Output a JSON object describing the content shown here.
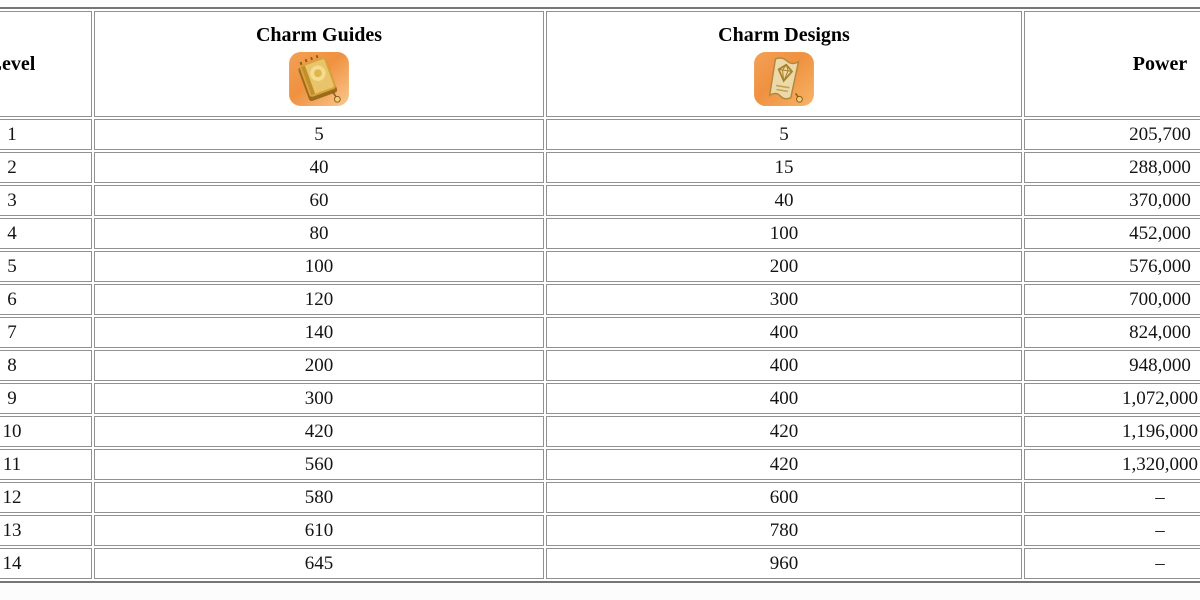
{
  "chart_data": {
    "type": "table",
    "columns": [
      "Level",
      "Charm Guides",
      "Charm Designs",
      "Power"
    ],
    "rows": [
      [
        1,
        5,
        5,
        "205,700"
      ],
      [
        2,
        40,
        15,
        "288,000"
      ],
      [
        3,
        60,
        40,
        "370,000"
      ],
      [
        4,
        80,
        100,
        "452,000"
      ],
      [
        5,
        100,
        200,
        "576,000"
      ],
      [
        6,
        120,
        300,
        "700,000"
      ],
      [
        7,
        140,
        400,
        "824,000"
      ],
      [
        8,
        200,
        400,
        "948,000"
      ],
      [
        9,
        300,
        400,
        "1,072,000"
      ],
      [
        10,
        420,
        420,
        "1,196,000"
      ],
      [
        11,
        560,
        420,
        "1,320,000"
      ],
      [
        12,
        580,
        600,
        "–"
      ],
      [
        13,
        610,
        780,
        "–"
      ],
      [
        14,
        645,
        960,
        "–"
      ]
    ],
    "layout_hints": {
      "grid": "full-borders",
      "header_icons_under_text": true,
      "left_edge_truncated": true,
      "right_edge_truncated": true
    }
  },
  "icons": {
    "guides": "charm-guides-icon",
    "designs": "charm-designs-icon"
  },
  "colors": {
    "background": "#fcfcfc",
    "cell_background": "#ffffff",
    "table_frame_border": "#767676",
    "cell_border": "#919191",
    "text": "#141414",
    "header_text": "#000000",
    "icon_orange": "#ef9140",
    "icon_orange_light": "#f9c98e",
    "icon_book_gold": "#d9a33c",
    "icon_parchment": "#ecd9a9",
    "icon_line_brown": "#a97f28"
  }
}
